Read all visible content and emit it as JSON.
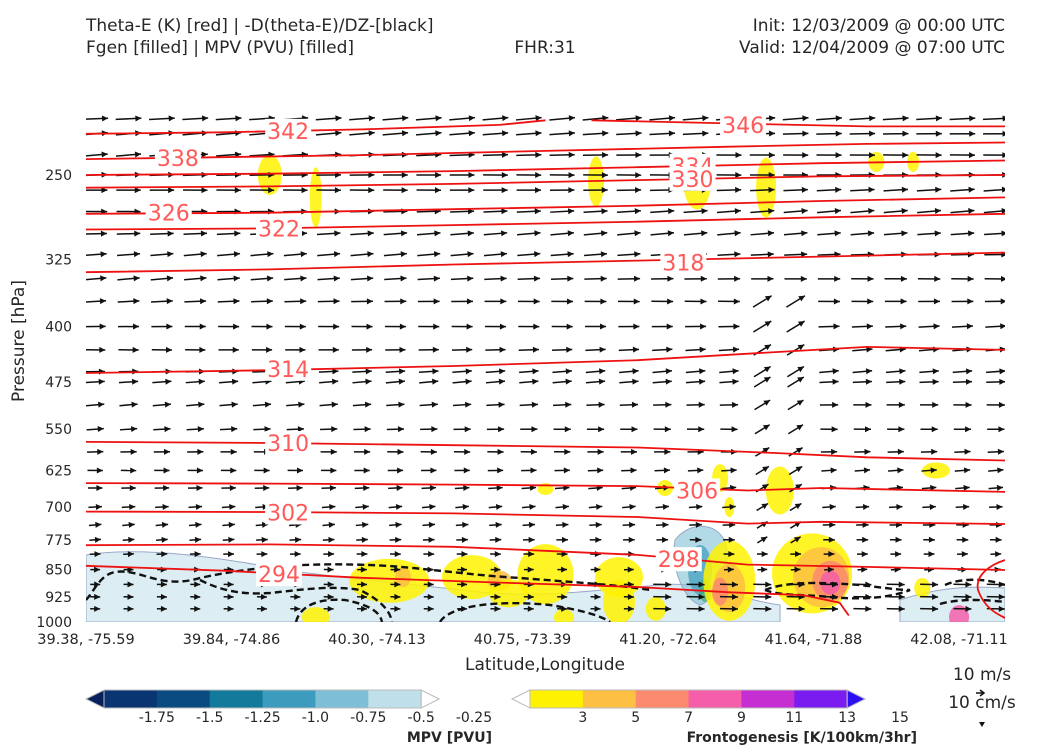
{
  "header": {
    "title_left_1": "Theta-E (K) [red] | -D(theta-E)/DZ-[black]",
    "title_left_2": "Fgen [filled] | MPV (PVU) [filled]",
    "title_center": "FHR:31",
    "title_right_1": "Init: 12/03/2009 @ 00:00 UTC",
    "title_right_2": "Valid: 12/04/2009 @ 07:00 UTC"
  },
  "chart_data": {
    "type": "cross-section",
    "xlabel": "Latitude,Longitude",
    "ylabel": "Pressure [hPa]",
    "ylim": [
      1000,
      175
    ],
    "y_scale": "log",
    "x_ticks": [
      "39.38, -75.59",
      "39.84, -74.86",
      "40.30, -74.13",
      "40.75, -73.39",
      "41.20, -72.64",
      "41.64, -71.88",
      "42.08, -71.11"
    ],
    "y_ticks": [
      250,
      325,
      400,
      475,
      550,
      625,
      700,
      775,
      850,
      925,
      1000
    ],
    "theta_e_series": [
      {
        "name": "338",
        "values": [
          [
            0,
            238
          ],
          [
            0.1,
            237
          ],
          [
            0.3,
            235
          ],
          [
            0.5,
            232
          ],
          [
            0.7,
            229
          ],
          [
            0.85,
            227
          ],
          [
            1,
            226
          ]
        ]
      },
      {
        "name": "342",
        "values": [
          [
            0,
            220
          ],
          [
            0.15,
            219
          ],
          [
            0.3,
            217
          ],
          [
            0.45,
            214
          ],
          [
            0.5,
            211
          ]
        ]
      },
      {
        "name": "346",
        "values": [
          [
            0.55,
            211
          ],
          [
            0.7,
            213
          ],
          [
            0.85,
            215
          ],
          [
            1,
            215
          ]
        ]
      },
      {
        "name": "334",
        "values": [
          [
            0,
            250
          ],
          [
            0.2,
            249
          ],
          [
            0.4,
            247
          ],
          [
            0.6,
            244
          ],
          [
            0.8,
            241
          ],
          [
            1,
            239
          ]
        ]
      },
      {
        "name": "330",
        "values": [
          [
            0,
            260
          ],
          [
            0.2,
            259
          ],
          [
            0.4,
            257
          ],
          [
            0.6,
            254
          ],
          [
            0.8,
            251
          ],
          [
            1,
            250
          ]
        ]
      },
      {
        "name": "326",
        "values": [
          [
            0,
            282
          ],
          [
            0.2,
            281
          ],
          [
            0.4,
            278
          ],
          [
            0.6,
            275
          ],
          [
            0.8,
            271
          ],
          [
            1,
            268
          ]
        ]
      },
      {
        "name": "322",
        "values": [
          [
            0,
            296
          ],
          [
            0.2,
            295
          ],
          [
            0.4,
            292
          ],
          [
            0.6,
            289
          ],
          [
            0.8,
            285
          ],
          [
            1,
            282
          ]
        ]
      },
      {
        "name": "318",
        "values": [
          [
            0,
            338
          ],
          [
            0.2,
            335
          ],
          [
            0.4,
            330
          ],
          [
            0.6,
            326
          ],
          [
            0.8,
            322
          ],
          [
            1,
            318
          ]
        ]
      },
      {
        "name": "314",
        "values": [
          [
            0,
            462
          ],
          [
            0.2,
            458
          ],
          [
            0.4,
            452
          ],
          [
            0.6,
            444
          ],
          [
            0.75,
            433
          ],
          [
            0.85,
            426
          ],
          [
            1,
            430
          ]
        ]
      },
      {
        "name": "310",
        "values": [
          [
            0,
            572
          ],
          [
            0.2,
            574
          ],
          [
            0.4,
            578
          ],
          [
            0.6,
            582
          ],
          [
            0.75,
            592
          ],
          [
            0.85,
            600
          ],
          [
            1,
            606
          ]
        ]
      },
      {
        "name": "306",
        "values": [
          [
            0,
            650
          ],
          [
            0.2,
            651
          ],
          [
            0.4,
            653
          ],
          [
            0.6,
            656
          ],
          [
            0.72,
            665
          ],
          [
            0.8,
            660
          ],
          [
            1,
            668
          ]
        ]
      },
      {
        "name": "302",
        "values": [
          [
            0,
            710
          ],
          [
            0.2,
            711
          ],
          [
            0.4,
            714
          ],
          [
            0.6,
            722
          ],
          [
            0.72,
            737
          ],
          [
            0.8,
            733
          ],
          [
            1,
            738
          ]
        ]
      },
      {
        "name": "298",
        "values": [
          [
            0,
            788
          ],
          [
            0.2,
            786
          ],
          [
            0.4,
            792
          ],
          [
            0.6,
            812
          ],
          [
            0.72,
            837
          ],
          [
            0.85,
            843
          ],
          [
            1,
            851
          ]
        ]
      },
      {
        "name": "294",
        "values": [
          [
            0,
            840
          ],
          [
            0.15,
            853
          ],
          [
            0.3,
            872
          ],
          [
            0.45,
            885
          ],
          [
            0.6,
            897
          ],
          [
            0.7,
            912
          ],
          [
            0.78,
            920
          ],
          [
            0.82,
            942
          ],
          [
            0.83,
            980
          ]
        ]
      }
    ],
    "theta_e_labels": [
      {
        "text": "338",
        "x": 0.1,
        "p": 237
      },
      {
        "text": "342",
        "x": 0.22,
        "p": 218
      },
      {
        "text": "346",
        "x": 0.715,
        "p": 214
      },
      {
        "text": "334",
        "x": 0.66,
        "p": 243
      },
      {
        "text": "330",
        "x": 0.66,
        "p": 253
      },
      {
        "text": "326",
        "x": 0.09,
        "p": 281
      },
      {
        "text": "322",
        "x": 0.21,
        "p": 295
      },
      {
        "text": "318",
        "x": 0.65,
        "p": 328
      },
      {
        "text": "314",
        "x": 0.22,
        "p": 456
      },
      {
        "text": "310",
        "x": 0.22,
        "p": 574
      },
      {
        "text": "306",
        "x": 0.665,
        "p": 665
      },
      {
        "text": "302",
        "x": 0.22,
        "p": 712
      },
      {
        "text": "298",
        "x": 0.645,
        "p": 823
      },
      {
        "text": "294",
        "x": 0.21,
        "p": 862
      }
    ],
    "scale_annotation": {
      "h": "10 m/s",
      "v": "10 cm/s"
    }
  },
  "colorbars": {
    "mpv": {
      "label": "MPV [PVU]",
      "ticks": [
        "-1.75",
        "-1.5",
        "-1.25",
        "-1.0",
        "-0.75",
        "-0.5",
        "-0.25"
      ],
      "colors": [
        "#08205c",
        "#093572",
        "#0a4c82",
        "#137a9c",
        "#3d9cbe",
        "#7fbfd6",
        "#bfe0ea",
        "#ffffff"
      ]
    },
    "fgen": {
      "label": "Frontogenesis [K/100km/3hr]",
      "ticks": [
        "3",
        "5",
        "7",
        "9",
        "11",
        "13",
        "15"
      ],
      "colors": [
        "#ffffff",
        "#fff200",
        "#fdc042",
        "#fb8a6e",
        "#f55ea8",
        "#c52fd2",
        "#7a1cf0",
        "#2a10f2"
      ]
    }
  }
}
